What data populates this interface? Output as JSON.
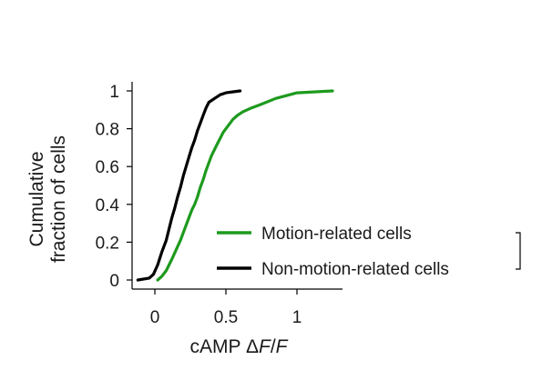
{
  "chart_data": {
    "type": "line",
    "xlabel": "cAMP ΔF/F",
    "ylabel": [
      "Cumulative",
      "fraction of cells"
    ],
    "xlim": [
      -0.15,
      1.3
    ],
    "ylim": [
      0,
      1
    ],
    "x_ticks": [
      0,
      0.5,
      1
    ],
    "x_tick_labels": [
      "0",
      "0.5",
      "1"
    ],
    "y_ticks": [
      0,
      0.2,
      0.4,
      0.6,
      0.8,
      1
    ],
    "y_tick_labels": [
      "0",
      "0.2",
      "0.4",
      "0.6",
      "0.8",
      "1"
    ],
    "grid": false,
    "legend_position": "lower-right",
    "significance": "***",
    "series": [
      {
        "name": "Motion-related cells",
        "color": "#1e9a1e",
        "x": [
          0.02,
          0.05,
          0.08,
          0.1,
          0.12,
          0.15,
          0.18,
          0.2,
          0.22,
          0.24,
          0.26,
          0.28,
          0.3,
          0.32,
          0.34,
          0.36,
          0.38,
          0.4,
          0.42,
          0.44,
          0.46,
          0.48,
          0.5,
          0.52,
          0.55,
          0.58,
          0.62,
          0.68,
          0.75,
          0.85,
          1.0,
          1.25
        ],
        "y": [
          0.0,
          0.02,
          0.05,
          0.08,
          0.11,
          0.16,
          0.21,
          0.25,
          0.29,
          0.33,
          0.37,
          0.4,
          0.44,
          0.49,
          0.53,
          0.58,
          0.62,
          0.66,
          0.69,
          0.72,
          0.75,
          0.78,
          0.8,
          0.82,
          0.85,
          0.87,
          0.89,
          0.91,
          0.93,
          0.96,
          0.99,
          1.0
        ]
      },
      {
        "name": "Non-motion-related cells",
        "color": "#000000",
        "x": [
          -0.12,
          -0.04,
          -0.01,
          0.02,
          0.05,
          0.08,
          0.1,
          0.12,
          0.14,
          0.16,
          0.18,
          0.2,
          0.22,
          0.24,
          0.26,
          0.28,
          0.3,
          0.32,
          0.34,
          0.36,
          0.38,
          0.42,
          0.46,
          0.5,
          0.6
        ],
        "y": [
          0.0,
          0.01,
          0.03,
          0.08,
          0.15,
          0.21,
          0.27,
          0.33,
          0.38,
          0.44,
          0.49,
          0.55,
          0.6,
          0.65,
          0.7,
          0.74,
          0.79,
          0.83,
          0.87,
          0.91,
          0.94,
          0.96,
          0.98,
          0.99,
          1.0
        ]
      }
    ]
  }
}
